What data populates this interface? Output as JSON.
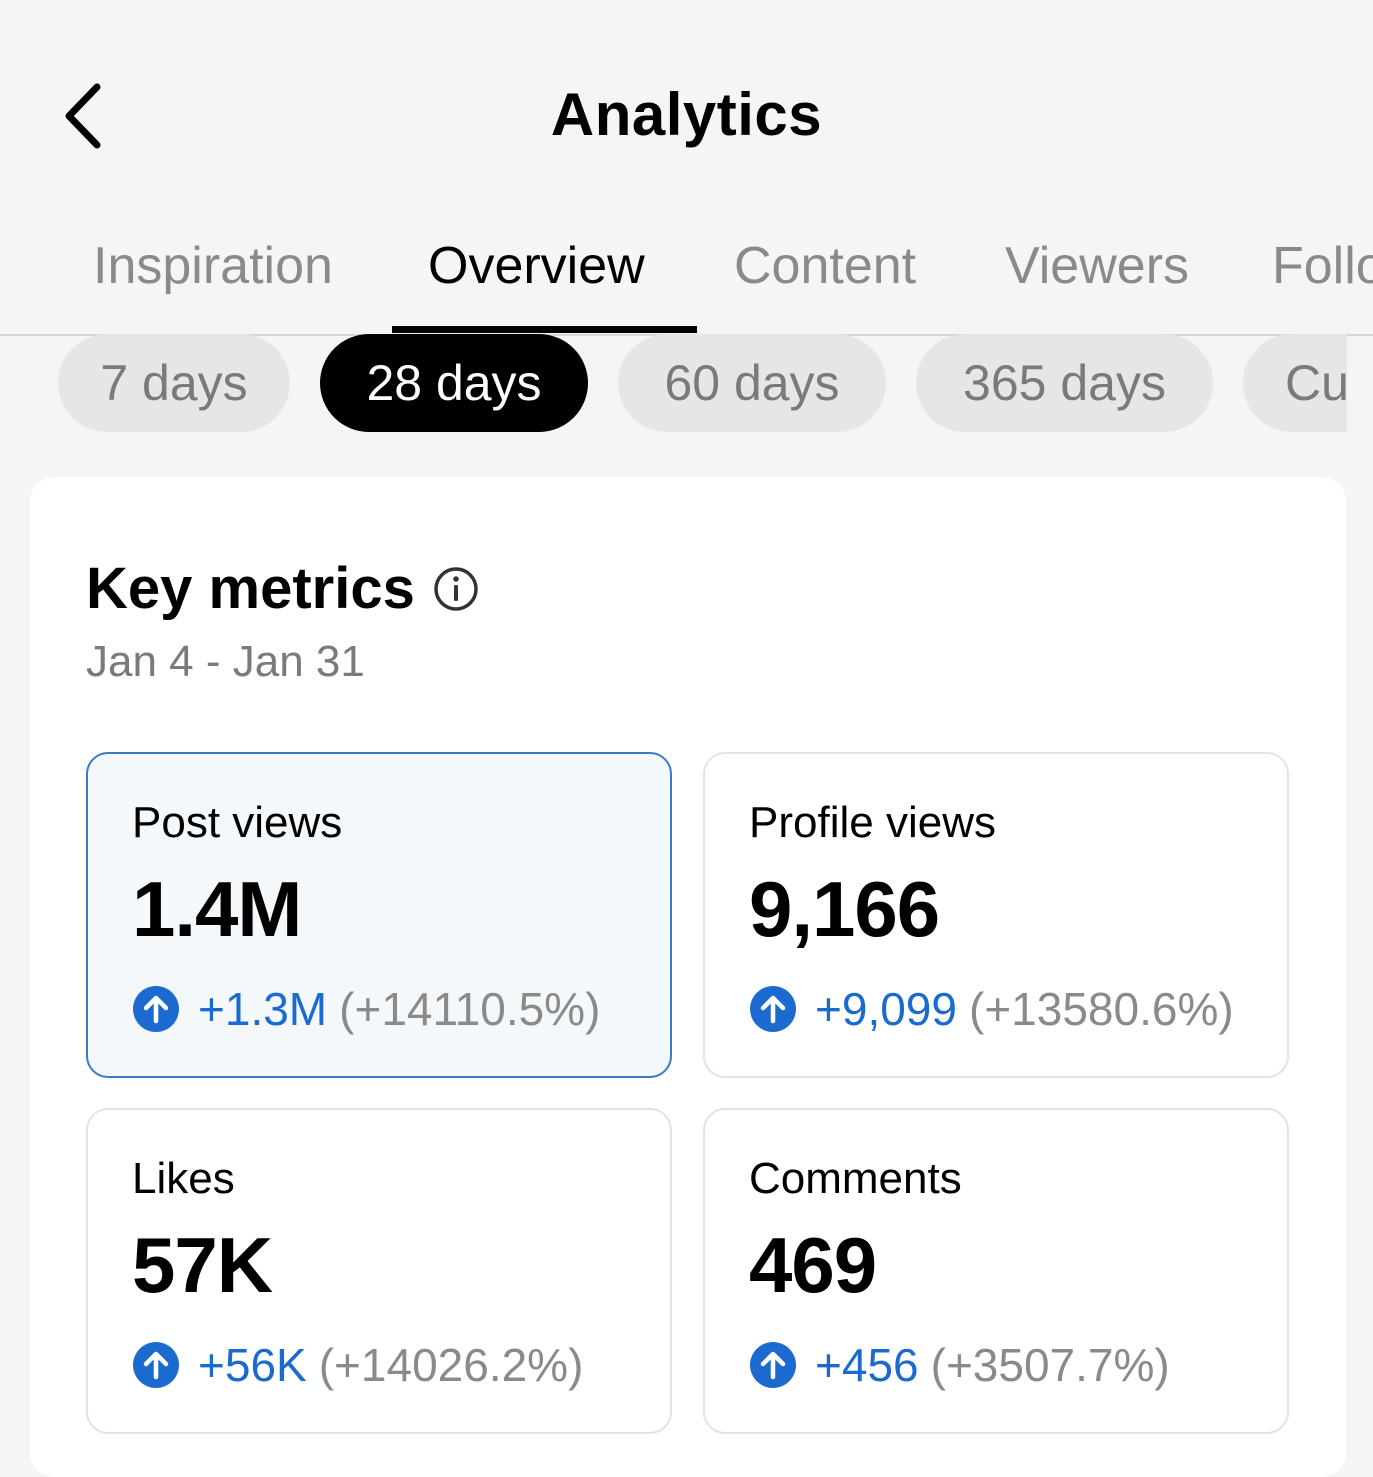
{
  "header": {
    "title": "Analytics",
    "back_icon": "chevron-left-icon"
  },
  "tabs": [
    {
      "label": "Inspiration",
      "active": false
    },
    {
      "label": "Overview",
      "active": true
    },
    {
      "label": "Content",
      "active": false
    },
    {
      "label": "Viewers",
      "active": false
    },
    {
      "label": "Follo",
      "active": false
    }
  ],
  "ranges": [
    {
      "label": "7 days",
      "active": false
    },
    {
      "label": "28 days",
      "active": true
    },
    {
      "label": "60 days",
      "active": false
    },
    {
      "label": "365 days",
      "active": false
    },
    {
      "label": "Cu",
      "active": false
    }
  ],
  "key_metrics": {
    "title": "Key metrics",
    "info_icon": "info-icon",
    "date_range": "Jan 4 - Jan 31",
    "accent_color": "#1b6ad0",
    "metrics": [
      {
        "label": "Post views",
        "value": "1.4M",
        "delta": "+1.3M",
        "pct": "(+14110.5%)",
        "selected": true
      },
      {
        "label": "Profile views",
        "value": "9,166",
        "delta": "+9,099",
        "pct": "(+13580.6%)",
        "selected": false
      },
      {
        "label": "Likes",
        "value": "57K",
        "delta": "+56K",
        "pct": "(+14026.2%)",
        "selected": false
      },
      {
        "label": "Comments",
        "value": "469",
        "delta": "+456",
        "pct": "(+3507.7%)",
        "selected": false
      }
    ]
  }
}
